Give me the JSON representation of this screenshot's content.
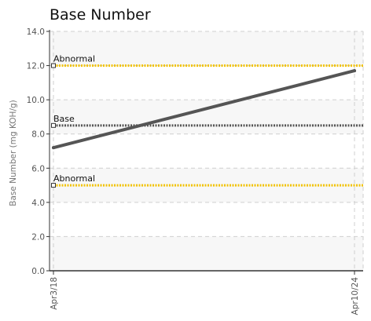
{
  "chart_data": {
    "type": "line",
    "title": "Base Number",
    "ylabel": "Base Number (mg KOH/g)",
    "xlabel": "",
    "ylim": [
      0,
      14
    ],
    "yticks": [
      "0.0",
      "2.0",
      "4.0",
      "6.0",
      "8.0",
      "10.0",
      "12.0",
      "14.0"
    ],
    "categories": [
      "Apr3/18",
      "Apr10/24"
    ],
    "series": [
      {
        "values": [
          7.2,
          11.7
        ],
        "color": "#555555"
      }
    ],
    "reference_lines": [
      {
        "label": "Abnormal",
        "value": 12.0,
        "color": "#f2c200",
        "style": "dotted"
      },
      {
        "label": "Base",
        "value": 8.5,
        "color": "#555555",
        "style": "dotted"
      },
      {
        "label": "Abnormal",
        "value": 5.0,
        "color": "#f2c200",
        "style": "dotted"
      }
    ],
    "grid": true,
    "legend": "none",
    "colors": {
      "band_fill": "#f7f7f7",
      "grid": "#cfcfcf",
      "axis": "#333333"
    }
  }
}
